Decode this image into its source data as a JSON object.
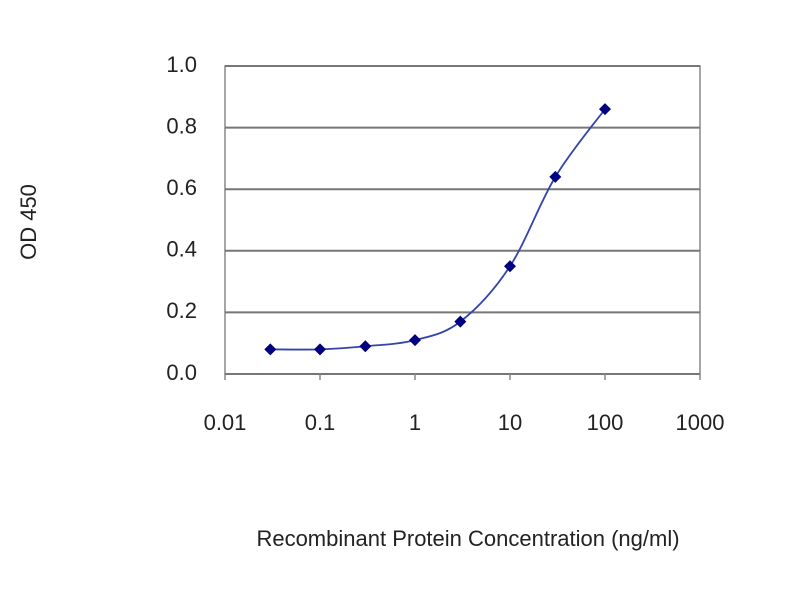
{
  "chart_data": {
    "type": "line",
    "xlabel": "Recombinant Protein Concentration (ng/ml)",
    "ylabel": "OD 450",
    "x": [
      0.03,
      0.1,
      0.3,
      1,
      3,
      10,
      30,
      100
    ],
    "series": [
      {
        "color": "#000080",
        "values": [
          0.08,
          0.08,
          0.09,
          0.11,
          0.17,
          0.35,
          0.64,
          0.86
        ]
      }
    ],
    "xscale": "log",
    "xlim": [
      0.01,
      1000
    ],
    "xticks": [
      0.01,
      0.1,
      1,
      10,
      100,
      1000
    ],
    "ylim": [
      0,
      1
    ],
    "yticks": [
      {
        "value": 0,
        "label": "0.0"
      },
      0.2,
      0.4,
      0.6,
      0.8,
      {
        "value": 1,
        "label": "1.0"
      }
    ],
    "grid": true
  }
}
